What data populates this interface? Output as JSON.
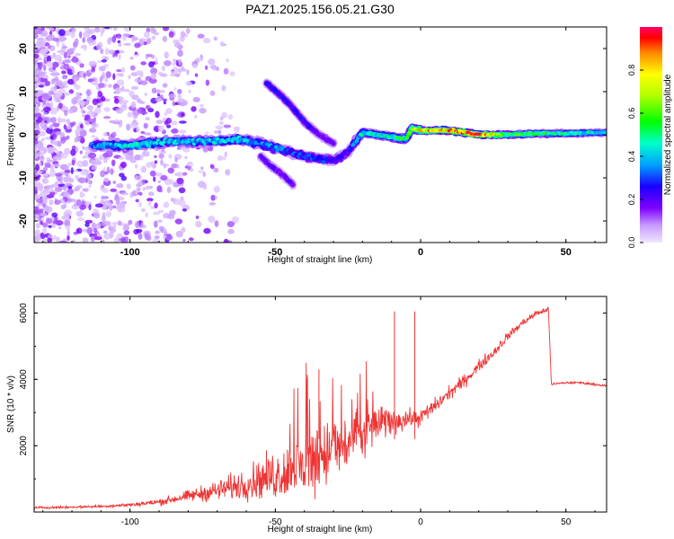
{
  "title": "PAZ1.2025.156.05.21.G30",
  "chart_data": [
    {
      "type": "heatmap",
      "xlabel": "Height of straight line (km)",
      "ylabel": "Frequency (Hz)",
      "xlim": [
        -133,
        64
      ],
      "ylim": [
        -25,
        25
      ],
      "xticks": [
        -100,
        -50,
        0,
        50
      ],
      "yticks": [
        -20,
        -10,
        0,
        10,
        20
      ],
      "colorbar": {
        "label": "Normalized spectral amplitude",
        "range": [
          0,
          1
        ],
        "ticks": [
          0.0,
          0.2,
          0.4,
          0.6,
          0.8
        ],
        "colormap": "rainbow (violet to red)"
      },
      "ridges": [
        {
          "x": [
            -113,
            -100,
            -85,
            -72,
            -62,
            -55,
            -50,
            -45,
            -40,
            -35,
            -30,
            -25,
            -20,
            -15,
            -10,
            -5,
            -3,
            0,
            10,
            20,
            30,
            40,
            50,
            60,
            64
          ],
          "y": [
            -2.5,
            -2.5,
            -1.5,
            -1.5,
            -1,
            -2,
            -3,
            -4,
            -5,
            -5.5,
            -6,
            -4,
            0.5,
            0,
            -0.5,
            -1,
            1.5,
            1,
            1,
            0,
            0,
            0.3,
            0.3,
            0.5,
            0.5
          ],
          "peak": [
            0.35,
            0.45,
            0.4,
            0.4,
            0.4,
            0.35,
            0.35,
            0.3,
            0.3,
            0.3,
            0.25,
            0.25,
            0.45,
            0.45,
            0.5,
            0.55,
            0.65,
            0.8,
            0.85,
            0.95,
            0.6,
            0.55,
            0.5,
            0.45,
            0.45
          ]
        },
        {
          "x": [
            -53,
            -48,
            -45,
            -40,
            -35,
            -30
          ],
          "y": [
            12,
            9,
            7,
            3,
            0,
            -2
          ],
          "peak": [
            0.25,
            0.25,
            0.25,
            0.25,
            0.2,
            0.2
          ]
        },
        {
          "x": [
            -55,
            -52,
            -48,
            -44
          ],
          "y": [
            -5,
            -7,
            -9,
            -11.5
          ],
          "peak": [
            0.2,
            0.2,
            0.2,
            0.2
          ]
        }
      ]
    },
    {
      "type": "line",
      "xlabel": "Height of straight line (km)",
      "ylabel": "SNR (10 * v/v)",
      "xlim": [
        -133,
        64
      ],
      "ylim": [
        0,
        6500
      ],
      "xticks": [
        -100,
        -50,
        0,
        50
      ],
      "yticks": [
        2000,
        4000,
        6000
      ],
      "color": "#ee3333",
      "x": [
        -133,
        -120,
        -110,
        -100,
        -90,
        -80,
        -70,
        -60,
        -55,
        -50,
        -45,
        -40,
        -35,
        -30,
        -25,
        -20,
        -15,
        -10,
        -5,
        0,
        5,
        10,
        15,
        20,
        25,
        30,
        35,
        40,
        44,
        45,
        50,
        55,
        60,
        64
      ],
      "y": [
        130,
        150,
        170,
        220,
        300,
        480,
        650,
        850,
        1000,
        1100,
        1250,
        1400,
        1700,
        1900,
        2050,
        2350,
        2650,
        2750,
        2800,
        2850,
        3200,
        3600,
        3950,
        4400,
        4800,
        5300,
        5700,
        6000,
        6100,
        3850,
        3900,
        3900,
        3850,
        3800
      ],
      "amplitude": [
        50,
        50,
        60,
        80,
        150,
        250,
        450,
        700,
        900,
        1100,
        1300,
        1600,
        1600,
        1500,
        1400,
        1200,
        900,
        600,
        450,
        350,
        350,
        300,
        300,
        250,
        250,
        200,
        150,
        150,
        120,
        50,
        50,
        50,
        50,
        50
      ],
      "annotations": [
        {
          "x": -35,
          "y": 4300
        },
        {
          "x": -9,
          "y": 6050
        },
        {
          "x": -2,
          "y": 6050
        }
      ]
    }
  ]
}
